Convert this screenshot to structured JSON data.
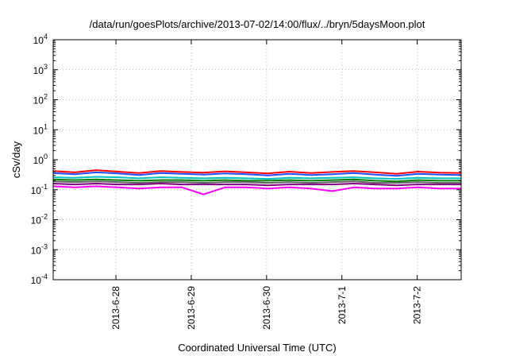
{
  "chart_data": {
    "type": "line",
    "title": "/data/run/goesPlots/archive/2013-07-02/14:00/flux/../bryn/5daysMoon.plot",
    "xlabel": "Coordinated Universal Time (UTC)",
    "ylabel": "cSv/day",
    "y_scale": "log",
    "ylim": [
      0.0001,
      10000
    ],
    "y_ticks": [
      {
        "base": "10",
        "exp": "-4",
        "value": 0.0001
      },
      {
        "base": "10",
        "exp": "-3",
        "value": 0.001
      },
      {
        "base": "10",
        "exp": "-2",
        "value": 0.01
      },
      {
        "base": "10",
        "exp": "-1",
        "value": 0.1
      },
      {
        "base": "10",
        "exp": "0",
        "value": 1
      },
      {
        "base": "10",
        "exp": "1",
        "value": 10
      },
      {
        "base": "10",
        "exp": "2",
        "value": 100
      },
      {
        "base": "10",
        "exp": "3",
        "value": 1000
      },
      {
        "base": "10",
        "exp": "4",
        "value": 10000
      }
    ],
    "xlim": [
      "2013-06-27 04:00",
      "2013-07-02 14:00"
    ],
    "x_ticks": [
      "2013-6-28",
      "2013-6-29",
      "2013-6-30",
      "2013-7-1",
      "2013-7-2"
    ],
    "grid": true,
    "series": [
      {
        "color": "#ff0000",
        "values": [
          0.42,
          0.38,
          0.45,
          0.4,
          0.36,
          0.42,
          0.39,
          0.37,
          0.41,
          0.38,
          0.35,
          0.4,
          0.36,
          0.39,
          0.42,
          0.38,
          0.34,
          0.4,
          0.37,
          0.36
        ]
      },
      {
        "color": "#1e50ff",
        "values": [
          0.36,
          0.33,
          0.38,
          0.35,
          0.31,
          0.36,
          0.34,
          0.32,
          0.35,
          0.33,
          0.3,
          0.34,
          0.31,
          0.33,
          0.36,
          0.32,
          0.29,
          0.34,
          0.32,
          0.31
        ]
      },
      {
        "color": "#00c0c0",
        "values": [
          0.26,
          0.25,
          0.27,
          0.26,
          0.24,
          0.26,
          0.25,
          0.24,
          0.25,
          0.24,
          0.23,
          0.25,
          0.24,
          0.25,
          0.26,
          0.24,
          0.23,
          0.25,
          0.24,
          0.24
        ]
      },
      {
        "color": "#008000",
        "values": [
          0.22,
          0.21,
          0.22,
          0.21,
          0.2,
          0.21,
          0.21,
          0.2,
          0.21,
          0.2,
          0.2,
          0.21,
          0.2,
          0.21,
          0.22,
          0.2,
          0.19,
          0.21,
          0.2,
          0.2
        ]
      },
      {
        "color": "#606060",
        "values": [
          0.19,
          0.18,
          0.19,
          0.18,
          0.17,
          0.18,
          0.18,
          0.17,
          0.18,
          0.18,
          0.17,
          0.18,
          0.17,
          0.18,
          0.19,
          0.17,
          0.17,
          0.18,
          0.17,
          0.17
        ]
      },
      {
        "color": "#800080",
        "values": [
          0.16,
          0.15,
          0.16,
          0.15,
          0.15,
          0.16,
          0.15,
          0.15,
          0.15,
          0.15,
          0.14,
          0.15,
          0.15,
          0.15,
          0.16,
          0.15,
          0.14,
          0.15,
          0.15,
          0.15
        ]
      },
      {
        "color": "#ff00ff",
        "values": [
          0.13,
          0.12,
          0.13,
          0.12,
          0.11,
          0.12,
          0.12,
          0.07,
          0.12,
          0.12,
          0.11,
          0.12,
          0.11,
          0.09,
          0.12,
          0.11,
          0.11,
          0.12,
          0.11,
          0.11
        ]
      }
    ]
  }
}
